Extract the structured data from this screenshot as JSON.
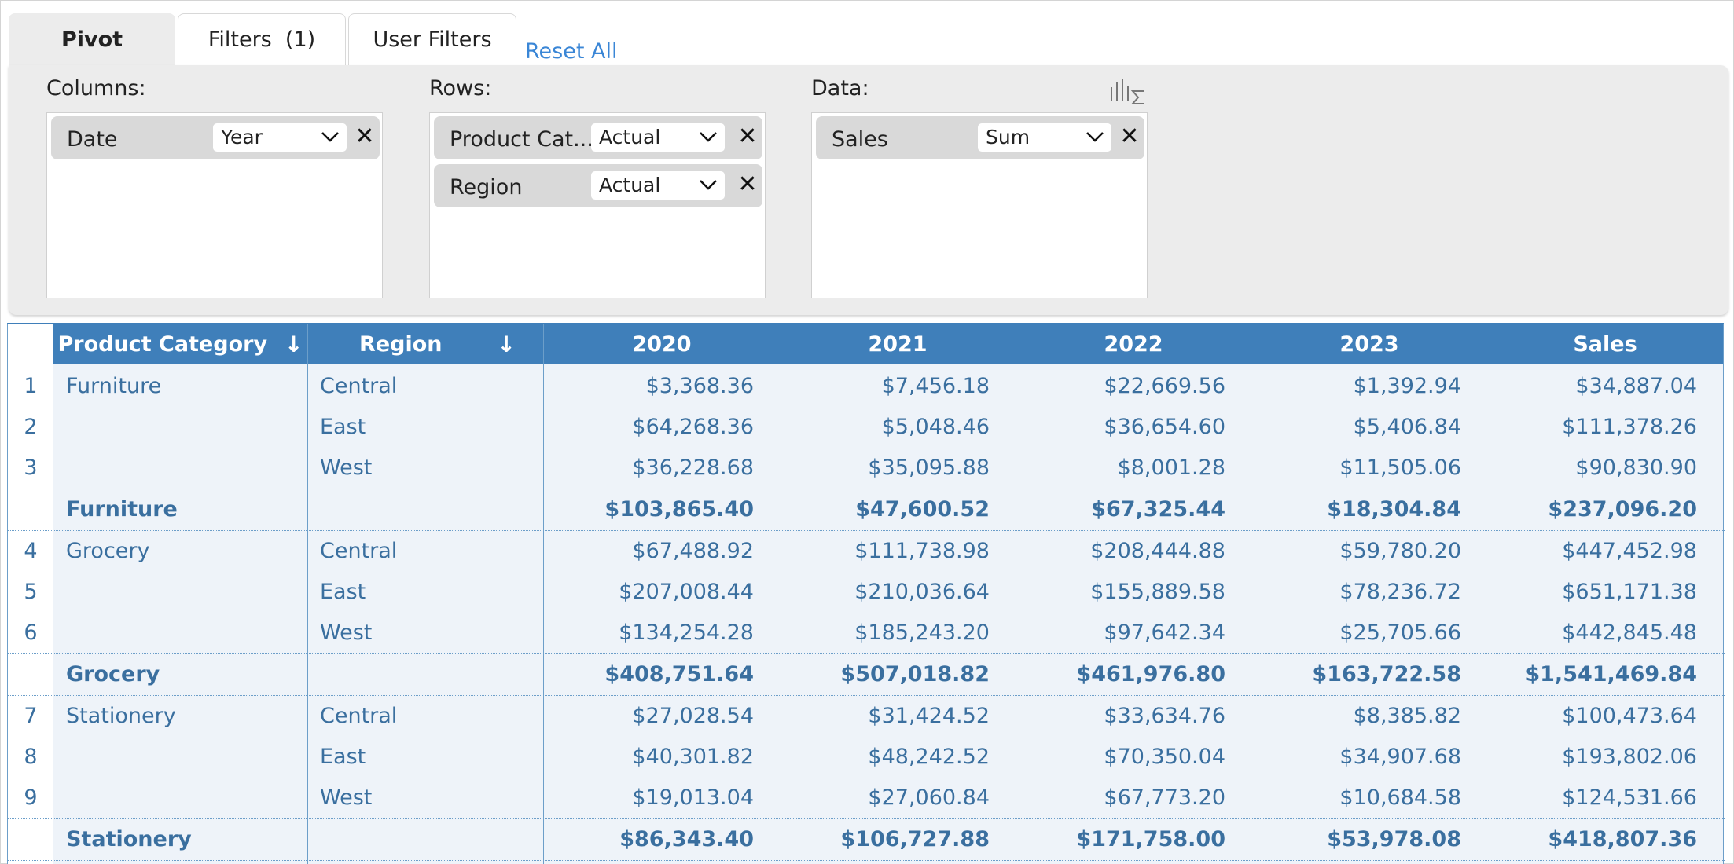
{
  "tabs": {
    "pivot": "Pivot",
    "filters": "Filters  (1)",
    "user_filters": "User Filters",
    "reset": "Reset All"
  },
  "config": {
    "columns_label": "Columns:",
    "rows_label": "Rows:",
    "data_label": "Data:",
    "columns": [
      {
        "name": "Date",
        "option": "Year"
      }
    ],
    "rows": [
      {
        "name": "Product Cat...",
        "option": "Actual"
      },
      {
        "name": "Region",
        "option": "Actual"
      }
    ],
    "data": [
      {
        "name": "Sales",
        "option": "Sum"
      }
    ],
    "remove_glyph": "✕"
  },
  "table": {
    "headers": {
      "product_category": "Product Category",
      "region": "Region",
      "y2020": "2020",
      "y2021": "2021",
      "y2022": "2022",
      "y2023": "2023",
      "sales": "Sales",
      "sort_arrow": "↓"
    },
    "rows": [
      {
        "num": "1",
        "cat": "Furniture",
        "reg": "Central",
        "v": [
          "$3,368.36",
          "$7,456.18",
          "$22,669.56",
          "$1,392.94",
          "$34,887.04"
        ]
      },
      {
        "num": "2",
        "cat": "",
        "reg": "East",
        "v": [
          "$64,268.36",
          "$5,048.46",
          "$36,654.60",
          "$5,406.84",
          "$111,378.26"
        ]
      },
      {
        "num": "3",
        "cat": "",
        "reg": "West",
        "v": [
          "$36,228.68",
          "$35,095.88",
          "$8,001.28",
          "$11,505.06",
          "$90,830.90"
        ]
      },
      {
        "num": "",
        "cat": "Furniture",
        "reg": "",
        "total": true,
        "v": [
          "$103,865.40",
          "$47,600.52",
          "$67,325.44",
          "$18,304.84",
          "$237,096.20"
        ]
      },
      {
        "num": "4",
        "cat": "Grocery",
        "reg": "Central",
        "v": [
          "$67,488.92",
          "$111,738.98",
          "$208,444.88",
          "$59,780.20",
          "$447,452.98"
        ]
      },
      {
        "num": "5",
        "cat": "",
        "reg": "East",
        "v": [
          "$207,008.44",
          "$210,036.64",
          "$155,889.58",
          "$78,236.72",
          "$651,171.38"
        ]
      },
      {
        "num": "6",
        "cat": "",
        "reg": "West",
        "v": [
          "$134,254.28",
          "$185,243.20",
          "$97,642.34",
          "$25,705.66",
          "$442,845.48"
        ]
      },
      {
        "num": "",
        "cat": "Grocery",
        "reg": "",
        "total": true,
        "v": [
          "$408,751.64",
          "$507,018.82",
          "$461,976.80",
          "$163,722.58",
          "$1,541,469.84"
        ]
      },
      {
        "num": "7",
        "cat": "Stationery",
        "reg": "Central",
        "v": [
          "$27,028.54",
          "$31,424.52",
          "$33,634.76",
          "$8,385.82",
          "$100,473.64"
        ]
      },
      {
        "num": "8",
        "cat": "",
        "reg": "East",
        "v": [
          "$40,301.82",
          "$48,242.52",
          "$70,350.04",
          "$34,907.68",
          "$193,802.06"
        ]
      },
      {
        "num": "9",
        "cat": "",
        "reg": "West",
        "v": [
          "$19,013.04",
          "$27,060.84",
          "$67,773.20",
          "$10,684.58",
          "$124,531.66"
        ]
      },
      {
        "num": "",
        "cat": "Stationery",
        "reg": "",
        "total": true,
        "v": [
          "$86,343.40",
          "$106,727.88",
          "$171,758.00",
          "$53,978.08",
          "$418,807.36"
        ]
      }
    ]
  }
}
